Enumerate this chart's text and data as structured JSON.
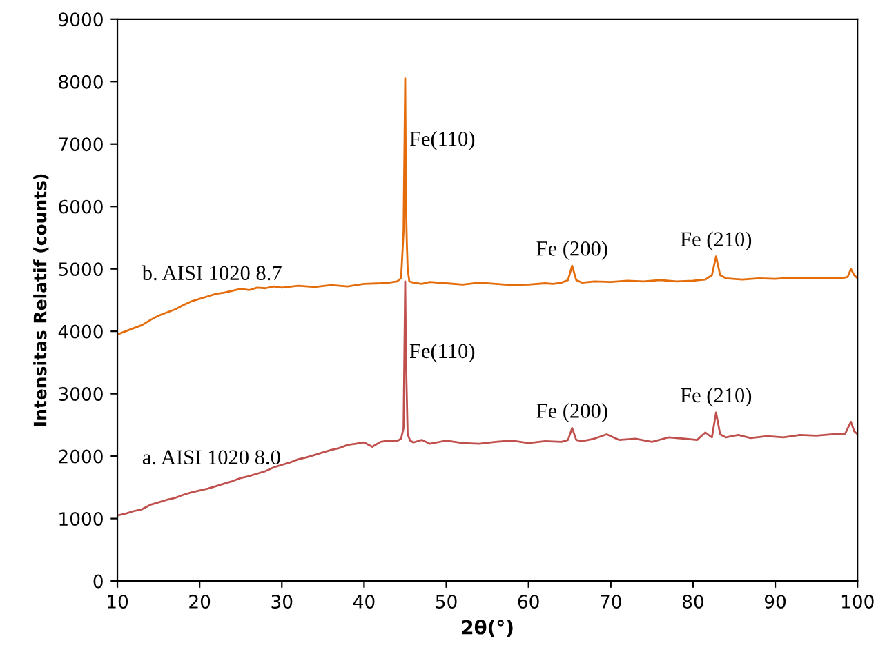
{
  "chart_data": {
    "type": "line",
    "xlabel": "2θ(°)",
    "ylabel": "Intensitas Relatif (counts)",
    "xlim": [
      10,
      100
    ],
    "ylim": [
      0,
      9000
    ],
    "xticks": [
      10,
      20,
      30,
      40,
      50,
      60,
      70,
      80,
      90,
      100
    ],
    "yticks": [
      0,
      1000,
      2000,
      3000,
      4000,
      5000,
      6000,
      7000,
      8000,
      9000
    ],
    "grid": false,
    "legend": false,
    "marker": "none",
    "line_style": "solid",
    "series": [
      {
        "name": "b. AISI 1020 8.7",
        "color": "#e46c0a",
        "x": [
          10,
          11,
          12,
          13,
          14,
          15,
          16,
          17,
          18,
          19,
          20,
          21,
          22,
          23,
          24,
          25,
          26,
          27,
          28,
          29,
          30,
          32,
          34,
          36,
          38,
          40,
          42,
          43,
          44,
          44.5,
          44.8,
          45.0,
          45.1,
          45.2,
          45.3,
          45.5,
          46,
          47,
          48,
          50,
          52,
          54,
          56,
          58,
          60,
          62,
          63,
          64,
          64.8,
          65.3,
          65.8,
          66.5,
          68,
          70,
          72,
          74,
          76,
          78,
          80,
          81.5,
          82.3,
          82.8,
          83.3,
          84,
          86,
          88,
          90,
          92,
          94,
          96,
          98,
          98.8,
          99.2,
          99.6,
          100
        ],
        "values": [
          3950,
          4000,
          4050,
          4100,
          4180,
          4250,
          4300,
          4350,
          4420,
          4480,
          4520,
          4560,
          4600,
          4620,
          4650,
          4680,
          4660,
          4700,
          4690,
          4720,
          4700,
          4730,
          4710,
          4740,
          4720,
          4760,
          4770,
          4780,
          4800,
          4850,
          5600,
          8050,
          6000,
          5400,
          5000,
          4800,
          4780,
          4760,
          4790,
          4770,
          4750,
          4780,
          4760,
          4740,
          4750,
          4770,
          4760,
          4780,
          4820,
          5050,
          4820,
          4780,
          4800,
          4790,
          4810,
          4800,
          4820,
          4800,
          4810,
          4830,
          4900,
          5200,
          4900,
          4850,
          4830,
          4850,
          4840,
          4860,
          4850,
          4860,
          4850,
          4870,
          5000,
          4900,
          4850
        ]
      },
      {
        "name": "a. AISI 1020 8.0",
        "color": "#c0504d",
        "x": [
          10,
          11,
          12,
          13,
          14,
          15,
          16,
          17,
          18,
          19,
          20,
          21,
          22,
          23,
          24,
          25,
          26,
          27,
          28,
          29,
          30,
          31,
          32,
          33,
          34,
          35,
          36,
          37,
          38,
          39,
          40,
          41,
          42,
          43,
          44,
          44.5,
          44.8,
          45.0,
          45.1,
          45.3,
          45.6,
          46,
          47,
          48,
          50,
          52,
          54,
          56,
          58,
          60,
          62,
          64,
          64.8,
          65.3,
          65.8,
          66.5,
          68,
          69.5,
          71,
          73,
          75,
          77,
          79,
          80.5,
          81.5,
          82.3,
          82.8,
          83.3,
          84,
          85.5,
          87,
          89,
          91,
          93,
          95,
          97,
          98.5,
          99.2,
          99.6,
          100
        ],
        "values": [
          1050,
          1080,
          1120,
          1150,
          1220,
          1260,
          1300,
          1330,
          1380,
          1420,
          1450,
          1480,
          1520,
          1560,
          1600,
          1650,
          1680,
          1720,
          1760,
          1820,
          1860,
          1900,
          1950,
          1980,
          2020,
          2060,
          2100,
          2130,
          2180,
          2200,
          2220,
          2150,
          2230,
          2250,
          2240,
          2280,
          2450,
          4800,
          3500,
          2350,
          2250,
          2220,
          2260,
          2200,
          2250,
          2210,
          2200,
          2230,
          2250,
          2210,
          2240,
          2230,
          2260,
          2450,
          2260,
          2240,
          2280,
          2350,
          2260,
          2280,
          2230,
          2300,
          2280,
          2260,
          2380,
          2300,
          2700,
          2350,
          2300,
          2340,
          2290,
          2320,
          2300,
          2340,
          2330,
          2350,
          2360,
          2550,
          2400,
          2350
        ]
      }
    ],
    "annotations": [
      {
        "text": "Fe(110)",
        "x": 45.5,
        "y": 6900
      },
      {
        "text": "Fe (200)",
        "x": 65.3,
        "y": 5050
      },
      {
        "text": "Fe (210)",
        "x": 82.8,
        "y": 5200
      },
      {
        "text": "Fe(110)",
        "x": 45.5,
        "y": 3500
      },
      {
        "text": "Fe (200)",
        "x": 65.3,
        "y": 2450
      },
      {
        "text": "Fe (210)",
        "x": 82.8,
        "y": 2700
      }
    ]
  }
}
